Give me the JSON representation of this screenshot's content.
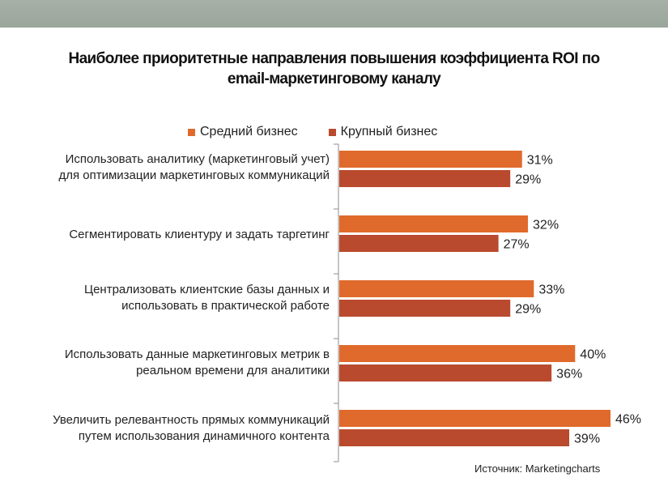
{
  "chart_data": {
    "type": "bar",
    "orientation": "horizontal",
    "title": "Наиболее приоритетные направления повышения коэффициента ROI по email-маркетинговому каналу",
    "title_lines": [
      "Наиболее приоритетные направления повышения коэффициента ROI по",
      "email-маркетинговому каналу"
    ],
    "categories": [
      [
        "Использовать аналитику (маркетинговый учет)",
        "для оптимизации маркетинговых коммуникаций"
      ],
      [
        "Сегментировать клиентуру  и задать таргетинг"
      ],
      [
        "Централизовать клиентские базы данных и",
        "использовать в практической работе"
      ],
      [
        "Использовать данные маркетинговых метрик в",
        "реальном времени для аналитики"
      ],
      [
        "Увеличить релевантность прямых коммуникаций",
        "путем использования динамичного контента"
      ]
    ],
    "series": [
      {
        "name": "Средний бизнес",
        "color": "#e06a2b",
        "values": [
          31,
          32,
          33,
          40,
          46
        ]
      },
      {
        "name": "Крупный бизнес",
        "color": "#b94a2e",
        "values": [
          29,
          27,
          29,
          36,
          39
        ]
      }
    ],
    "value_suffix": "%",
    "legend_position": "top",
    "source": "Источник: Marketingcharts"
  }
}
